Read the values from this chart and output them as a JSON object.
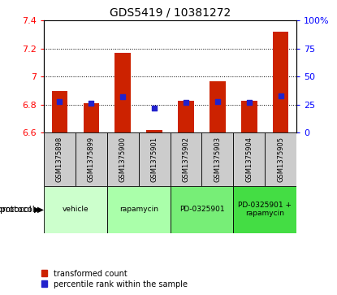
{
  "title": "GDS5419 / 10381272",
  "samples": [
    "GSM1375898",
    "GSM1375899",
    "GSM1375900",
    "GSM1375901",
    "GSM1375902",
    "GSM1375903",
    "GSM1375904",
    "GSM1375905"
  ],
  "transformed_counts": [
    6.9,
    6.81,
    7.17,
    6.62,
    6.83,
    6.97,
    6.83,
    7.32
  ],
  "percentile_ranks": [
    28,
    26,
    32,
    22,
    27,
    28,
    27,
    33
  ],
  "ylim_left": [
    6.6,
    7.4
  ],
  "yticks_left": [
    6.6,
    6.8,
    7.0,
    7.2,
    7.4
  ],
  "ylim_right": [
    0,
    100
  ],
  "yticks_right": [
    0,
    25,
    50,
    75,
    100
  ],
  "bar_color": "#cc2200",
  "dot_color": "#2222cc",
  "bar_bottom": 6.6,
  "sample_bg_color": "#cccccc",
  "protocol_colors": [
    "#ccffcc",
    "#aaffaa",
    "#77ee77",
    "#44dd44"
  ],
  "proto_data": [
    [
      0,
      1,
      "vehicle"
    ],
    [
      2,
      3,
      "rapamycin"
    ],
    [
      4,
      5,
      "PD-0325901"
    ],
    [
      6,
      7,
      "PD-0325901 +\nrapamycin"
    ]
  ],
  "legend_red_label": "transformed count",
  "legend_blue_label": "percentile rank within the sample",
  "title_fontsize": 10,
  "tick_fontsize": 8,
  "bar_width": 0.5
}
